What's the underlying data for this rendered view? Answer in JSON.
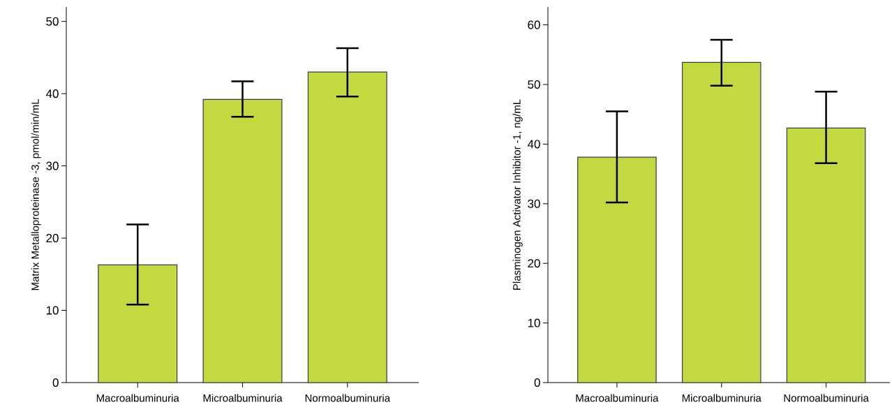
{
  "chart_data": [
    {
      "type": "bar",
      "ylabel": "Matrix Metalloproteinase -3, pmol/min/mL",
      "categories": [
        "Macroalbuminuria",
        "Microalbuminuria",
        "Normoalbuminuria"
      ],
      "values": [
        16.3,
        39.2,
        43.0
      ],
      "errors": [
        [
          10.8,
          21.9
        ],
        [
          36.8,
          41.7
        ],
        [
          39.6,
          46.3
        ]
      ],
      "color": "#c3d93f",
      "ylim": [
        0,
        52
      ],
      "yticks": [
        0,
        10,
        20,
        30,
        40,
        50
      ]
    },
    {
      "type": "bar",
      "ylabel": "Plasminogen Activator Inhibitor -1, ng/mL",
      "categories": [
        "Macroalbuminuria",
        "Microalbuminuria",
        "Normoalbuminuria"
      ],
      "values": [
        37.8,
        53.7,
        42.7
      ],
      "errors": [
        [
          30.2,
          45.5
        ],
        [
          49.8,
          57.5
        ],
        [
          36.8,
          48.8
        ]
      ],
      "color": "#c3d93f",
      "ylim": [
        0,
        63
      ],
      "yticks": [
        0,
        10,
        20,
        30,
        40,
        50,
        60
      ]
    }
  ]
}
